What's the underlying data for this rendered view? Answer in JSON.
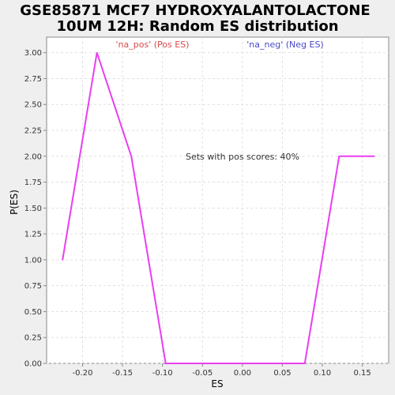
{
  "chart_data": {
    "type": "line",
    "title_lines": [
      "GSE85871 MCF7 HYDROXYALANTOLACTONE",
      "10UM 12H: Random ES distribution"
    ],
    "xlabel": "ES",
    "ylabel": "P(ES)",
    "xlim": [
      -0.245,
      0.183
    ],
    "ylim": [
      0,
      3.15
    ],
    "grid": true,
    "x_ticks": [
      -0.2,
      -0.15,
      -0.1,
      -0.05,
      0.0,
      0.05,
      0.1,
      0.15
    ],
    "x_tick_labels": [
      "-0.20",
      "-0.15",
      "-0.10",
      "-0.05",
      "0.00",
      "0.05",
      "0.10",
      "0.15"
    ],
    "y_ticks": [
      0,
      0.25,
      0.5,
      0.75,
      1.0,
      1.25,
      1.5,
      1.75,
      2.0,
      2.25,
      2.5,
      2.75,
      3.0
    ],
    "y_tick_labels": [
      "0.00",
      "0.25",
      "0.50",
      "0.75",
      "1.00",
      "1.25",
      "1.50",
      "1.75",
      "2.00",
      "2.25",
      "2.50",
      "2.75",
      "3.00"
    ],
    "legend": [
      {
        "label": "'na_pos' (Pos ES)",
        "color": "#d94a4a"
      },
      {
        "label": "'na_neg' (Neg ES)",
        "color": "#4a48c8"
      }
    ],
    "annotation": "Sets with pos scores: 40%",
    "series": [
      {
        "color": "#e83ff0",
        "x": [
          -0.225,
          -0.182,
          -0.139,
          -0.096,
          -0.053,
          -0.01,
          0.034,
          0.078,
          0.121,
          0.165
        ],
        "y": [
          1.0,
          3.0,
          2.0,
          0.0,
          0.0,
          0.0,
          0.0,
          0.0,
          2.0,
          2.0
        ]
      }
    ]
  }
}
